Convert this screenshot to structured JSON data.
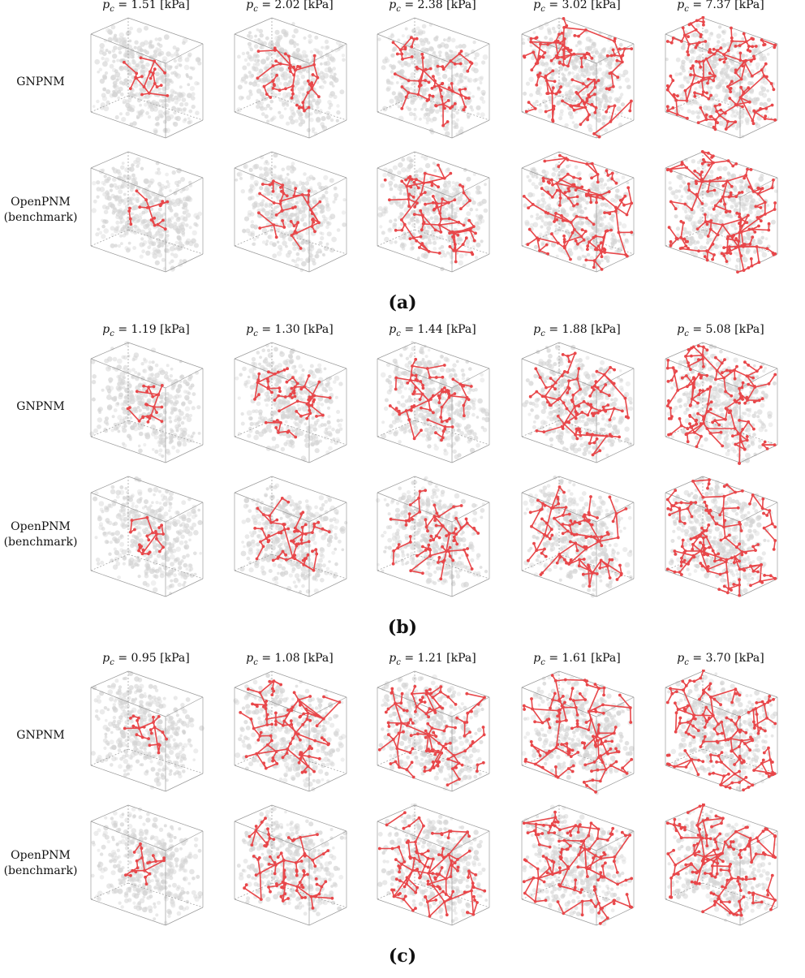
{
  "figure": {
    "panels": [
      {
        "caption": "(a)",
        "pressures": [
          "1.51",
          "2.02",
          "2.38",
          "3.02",
          "7.37"
        ],
        "unit": "[kPa]",
        "rows": [
          {
            "label_line1": "GNPNM",
            "label_line2": ""
          },
          {
            "label_line1": "OpenPNM",
            "label_line2": "(benchmark)"
          }
        ]
      },
      {
        "caption": "(b)",
        "pressures": [
          "1.19",
          "1.30",
          "1.44",
          "1.88",
          "5.08"
        ],
        "unit": "[kPa]",
        "rows": [
          {
            "label_line1": "GNPNM",
            "label_line2": ""
          },
          {
            "label_line1": "OpenPNM",
            "label_line2": "(benchmark)"
          }
        ]
      },
      {
        "caption": "(c)",
        "pressures": [
          "0.95",
          "1.08",
          "1.21",
          "1.61",
          "3.70"
        ],
        "unit": "[kPa]",
        "rows": [
          {
            "label_line1": "GNPNM",
            "label_line2": ""
          },
          {
            "label_line1": "OpenPNM",
            "label_line2": "(benchmark)"
          }
        ]
      }
    ],
    "pc_symbol": "p",
    "pc_subscript": "c",
    "colors": {
      "invaded": "#e8474a",
      "pore": "#d4d4d4",
      "discrepancy": "#b23be0",
      "outlet": "#3a4fd8"
    }
  }
}
